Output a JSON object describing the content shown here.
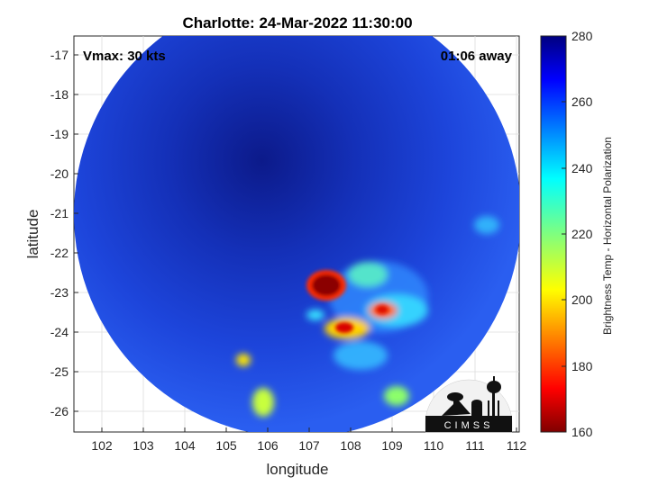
{
  "title": "Charlotte: 24-Mar-2022 11:30:00",
  "vmax_label": "Vmax: 30 kts",
  "time_label": "01:06 away",
  "xlabel": "longitude",
  "ylabel": "latitude",
  "x_ticks": [
    "102",
    "103",
    "104",
    "105",
    "106",
    "107",
    "108",
    "109",
    "110",
    "111",
    "112"
  ],
  "y_ticks": [
    "-17",
    "-18",
    "-19",
    "-20",
    "-21",
    "-22",
    "-23",
    "-24",
    "-25",
    "-26"
  ],
  "colorbar": {
    "label": "Brightness Temp - Horizontal Polarization",
    "ticks": [
      "280",
      "260",
      "240",
      "220",
      "200",
      "180",
      "160"
    ],
    "range": [
      160,
      280
    ],
    "colormap": "jet"
  },
  "logo_text": "CIMSS",
  "colors": {
    "background_blue": "#1a3fd8",
    "core_blue": "#0d1f9a",
    "hot_red": "#8b0000"
  }
}
